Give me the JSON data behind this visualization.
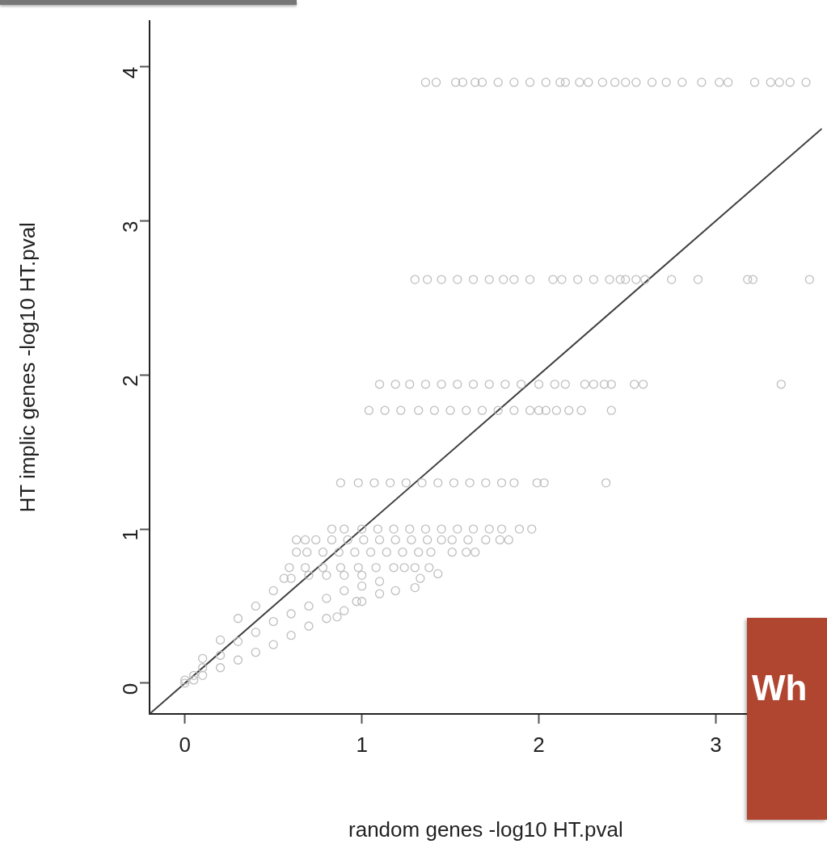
{
  "chart_data": {
    "type": "scatter",
    "xlabel": "random genes -log10 HT.pval",
    "ylabel": "HT implic genes -log10 HT.pval",
    "xlim": [
      -0.2,
      3.6
    ],
    "ylim": [
      -0.2,
      4.3
    ],
    "xticks": [
      0,
      1,
      2,
      3
    ],
    "yticks": [
      0,
      1,
      2,
      3,
      4
    ],
    "grid": false,
    "legend": false,
    "marker": "circle",
    "annotations": [
      "Wh"
    ],
    "series": [
      {
        "type": "scatter",
        "color": "#bebebe",
        "x": [
          1.36,
          1.42,
          1.53,
          1.57,
          1.64,
          1.68,
          1.77,
          1.86,
          1.95,
          2.04,
          2.12,
          2.15,
          2.23,
          2.28,
          2.36,
          2.43,
          2.49,
          2.55,
          2.64,
          2.72,
          2.81,
          2.92,
          3.02,
          3.07,
          3.22,
          3.31,
          3.36,
          3.42,
          3.51,
          1.3,
          1.37,
          1.45,
          1.54,
          1.63,
          1.72,
          1.8,
          1.86,
          1.95,
          2.08,
          2.13,
          2.22,
          2.31,
          2.4,
          2.46,
          2.49,
          2.55,
          2.6,
          2.75,
          2.9,
          3.18,
          3.21,
          3.53,
          1.1,
          1.19,
          1.27,
          1.36,
          1.45,
          1.54,
          1.63,
          1.72,
          1.81,
          1.9,
          2.0,
          2.09,
          2.15,
          2.26,
          2.31,
          2.37,
          2.41,
          2.54,
          2.59,
          3.37,
          1.04,
          1.13,
          1.22,
          1.32,
          1.41,
          1.5,
          1.59,
          1.68,
          1.77,
          1.86,
          1.95,
          2.0,
          2.04,
          2.1,
          2.17,
          2.24,
          2.41,
          0.88,
          0.98,
          1.07,
          1.16,
          1.25,
          1.34,
          1.43,
          1.52,
          1.61,
          1.7,
          1.79,
          1.86,
          1.99,
          2.03,
          2.38,
          0.83,
          0.9,
          1.0,
          1.09,
          1.18,
          1.27,
          1.36,
          1.45,
          1.54,
          1.63,
          1.72,
          1.79,
          1.89,
          1.96,
          0.63,
          0.68,
          0.74,
          0.83,
          0.92,
          1.01,
          1.1,
          1.19,
          1.28,
          1.37,
          1.45,
          1.51,
          1.6,
          1.7,
          1.78,
          1.83,
          0.63,
          0.69,
          0.78,
          0.87,
          0.96,
          1.05,
          1.14,
          1.23,
          1.32,
          1.39,
          1.51,
          1.59,
          1.64,
          0.59,
          0.68,
          0.78,
          0.88,
          0.98,
          1.08,
          1.18,
          1.24,
          1.3,
          1.38,
          0.56,
          0.0,
          0.0,
          0.05,
          0.05,
          0.1,
          0.1,
          0.1,
          0.2,
          0.2,
          0.2,
          0.3,
          0.3,
          0.3,
          0.4,
          0.4,
          0.4,
          0.5,
          0.5,
          0.5,
          0.6,
          0.6,
          0.6,
          0.7,
          0.7,
          0.7,
          0.8,
          0.8,
          0.8,
          0.9,
          0.9,
          0.9,
          1.0,
          1.0,
          1.0,
          1.1,
          1.1,
          0.86,
          0.97,
          1.19,
          1.3,
          1.33,
          1.43
        ],
        "values": [
          3.9,
          3.9,
          3.9,
          3.9,
          3.9,
          3.9,
          3.9,
          3.9,
          3.9,
          3.9,
          3.9,
          3.9,
          3.9,
          3.9,
          3.9,
          3.9,
          3.9,
          3.9,
          3.9,
          3.9,
          3.9,
          3.9,
          3.9,
          3.9,
          3.9,
          3.9,
          3.9,
          3.9,
          3.9,
          2.62,
          2.62,
          2.62,
          2.62,
          2.62,
          2.62,
          2.62,
          2.62,
          2.62,
          2.62,
          2.62,
          2.62,
          2.62,
          2.62,
          2.62,
          2.62,
          2.62,
          2.62,
          2.62,
          2.62,
          2.62,
          2.62,
          2.62,
          1.94,
          1.94,
          1.94,
          1.94,
          1.94,
          1.94,
          1.94,
          1.94,
          1.94,
          1.94,
          1.94,
          1.94,
          1.94,
          1.94,
          1.94,
          1.94,
          1.94,
          1.94,
          1.94,
          1.94,
          1.77,
          1.77,
          1.77,
          1.77,
          1.77,
          1.77,
          1.77,
          1.77,
          1.77,
          1.77,
          1.77,
          1.77,
          1.77,
          1.77,
          1.77,
          1.77,
          1.77,
          1.3,
          1.3,
          1.3,
          1.3,
          1.3,
          1.3,
          1.3,
          1.3,
          1.3,
          1.3,
          1.3,
          1.3,
          1.3,
          1.3,
          1.3,
          1.0,
          1.0,
          1.0,
          1.0,
          1.0,
          1.0,
          1.0,
          1.0,
          1.0,
          1.0,
          1.0,
          1.0,
          1.0,
          1.0,
          0.93,
          0.93,
          0.93,
          0.93,
          0.93,
          0.93,
          0.93,
          0.93,
          0.93,
          0.93,
          0.93,
          0.93,
          0.93,
          0.93,
          0.93,
          0.93,
          0.85,
          0.85,
          0.85,
          0.85,
          0.85,
          0.85,
          0.85,
          0.85,
          0.85,
          0.85,
          0.85,
          0.85,
          0.85,
          0.75,
          0.75,
          0.75,
          0.75,
          0.75,
          0.75,
          0.75,
          0.75,
          0.75,
          0.75,
          0.68,
          0.0,
          0.02,
          0.02,
          0.05,
          0.05,
          0.1,
          0.16,
          0.1,
          0.18,
          0.28,
          0.15,
          0.27,
          0.42,
          0.2,
          0.33,
          0.5,
          0.25,
          0.4,
          0.6,
          0.31,
          0.45,
          0.68,
          0.37,
          0.5,
          0.7,
          0.42,
          0.55,
          0.7,
          0.47,
          0.6,
          0.7,
          0.53,
          0.63,
          0.7,
          0.58,
          0.66,
          0.43,
          0.53,
          0.6,
          0.62,
          0.68,
          0.71
        ]
      },
      {
        "type": "line",
        "color": "#404040",
        "marker": "none",
        "x": [
          -0.2,
          3.6
        ],
        "values": [
          -0.2,
          3.6
        ]
      }
    ]
  }
}
